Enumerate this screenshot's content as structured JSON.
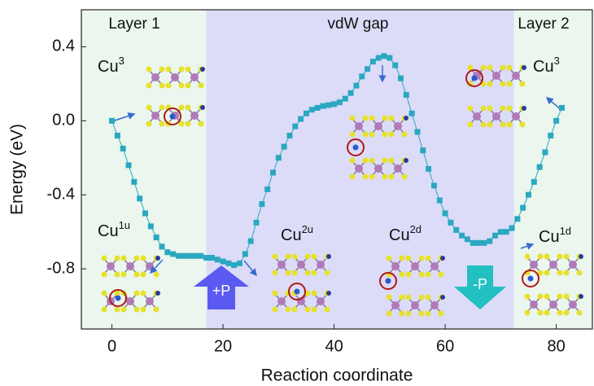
{
  "chart_data": {
    "type": "line",
    "xlabel": "Reaction coordinate",
    "ylabel": "Energy (eV)",
    "color": "#2aa8c0",
    "xlim": [
      -5.5,
      86.5
    ],
    "ylim": [
      -1.125,
      0.6
    ],
    "xticks": [
      0,
      20,
      40,
      60,
      80
    ],
    "yticks": [
      0.4,
      {
        "value": 0,
        "label": "0.0"
      },
      -0.4,
      -0.8
    ],
    "regions": [
      {
        "label": "Layer 1",
        "start": -5.5,
        "end": 17,
        "color": "#eaf6ee"
      },
      {
        "label": "vdW gap",
        "start": 17,
        "end": 72.4,
        "color": "#dcdcf8"
      },
      {
        "label": "Layer 2",
        "start": 72.4,
        "end": 86.5,
        "color": "#eaf6ee"
      }
    ],
    "annotations": [
      {
        "text": "Cu",
        "sup": "3"
      },
      {
        "text": "Cu",
        "sup": "1u"
      },
      {
        "text": "Cu",
        "sup": "2u"
      },
      {
        "text": "Cu",
        "sup": "2d"
      },
      {
        "text": "Cu",
        "sup": "3"
      },
      {
        "text": "Cu",
        "sup": "1d"
      }
    ],
    "arrows": [
      {
        "label": "+P",
        "color": "#5a5af0"
      },
      {
        "label": "-P",
        "color": "#22c0c0"
      }
    ],
    "x": [
      0,
      1,
      2,
      3,
      4,
      5,
      6,
      7,
      8,
      9,
      10,
      11,
      12,
      13,
      14,
      15,
      16,
      17,
      18,
      19,
      20,
      21,
      22,
      23,
      24,
      25,
      26,
      27,
      28,
      29,
      30,
      31,
      32,
      33,
      34,
      35,
      36,
      37,
      38,
      39,
      40,
      41,
      42,
      43,
      44,
      45,
      46,
      47,
      48,
      49,
      50,
      51,
      52,
      53,
      54,
      55,
      56,
      57,
      58,
      59,
      60,
      61,
      62,
      63,
      64,
      65,
      66,
      67,
      68,
      69,
      70,
      71,
      72,
      73,
      74,
      75,
      76,
      77,
      78,
      79,
      80,
      81
    ],
    "values": [
      0.0,
      -0.08,
      -0.15,
      -0.24,
      -0.33,
      -0.42,
      -0.5,
      -0.57,
      -0.63,
      -0.68,
      -0.71,
      -0.72,
      -0.73,
      -0.73,
      -0.73,
      -0.73,
      -0.73,
      -0.74,
      -0.74,
      -0.75,
      -0.76,
      -0.77,
      -0.78,
      -0.77,
      -0.72,
      -0.65,
      -0.55,
      -0.45,
      -0.37,
      -0.28,
      -0.2,
      -0.14,
      -0.08,
      -0.03,
      0.01,
      0.04,
      0.06,
      0.07,
      0.08,
      0.085,
      0.09,
      0.1,
      0.12,
      0.15,
      0.19,
      0.24,
      0.28,
      0.32,
      0.34,
      0.35,
      0.34,
      0.3,
      0.23,
      0.14,
      0.04,
      -0.06,
      -0.16,
      -0.26,
      -0.35,
      -0.43,
      -0.5,
      -0.55,
      -0.59,
      -0.62,
      -0.64,
      -0.66,
      -0.66,
      -0.66,
      -0.65,
      -0.62,
      -0.6,
      -0.6,
      -0.58,
      -0.53,
      -0.47,
      -0.4,
      -0.33,
      -0.25,
      -0.17,
      -0.08,
      0.0,
      0.07
    ]
  }
}
